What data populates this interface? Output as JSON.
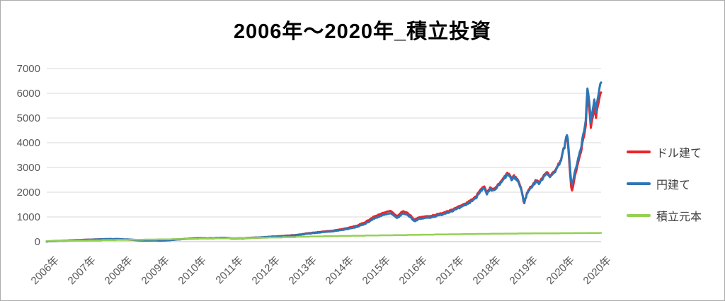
{
  "chart_data": {
    "type": "line",
    "title": "2006年～2020年_積立投資",
    "grid": "horizontal",
    "colors": {
      "usd": "#e8252a",
      "jpy": "#2e75b6",
      "principal": "#95d054",
      "gridline": "#d9d9d9",
      "axis_line": "#bfbfbf",
      "tick_label": "#595959",
      "title_color": "#000000"
    },
    "y_axis": {
      "min": 0,
      "max": 7000,
      "tick_values": [
        0,
        1000,
        2000,
        3000,
        4000,
        5000,
        6000,
        7000
      ],
      "tick_labels": [
        "0",
        "1000",
        "2000",
        "3000",
        "4000",
        "5000",
        "6000",
        "7000"
      ]
    },
    "x_axis": {
      "rotation": -45,
      "tick_labels": [
        "2006年",
        "2007年",
        "2008年",
        "2009年",
        "2010年",
        "2011年",
        "2012年",
        "2013年",
        "2014年",
        "2015年",
        "2016年",
        "2017年",
        "2018年",
        "2019年",
        "2020年",
        "2020年"
      ]
    },
    "legend": {
      "position": "right",
      "items": [
        {
          "id": "usd",
          "label": "ドル建て",
          "color": "#e8252a"
        },
        {
          "id": "jpy",
          "label": "円建て",
          "color": "#2e75b6"
        },
        {
          "id": "principal",
          "label": "積立元本",
          "color": "#95d054"
        }
      ]
    },
    "series": [
      {
        "id": "usd",
        "name": "ドル建て",
        "color": "#e8252a",
        "width": 3,
        "anchors": [
          [
            0.0,
            10
          ],
          [
            0.02,
            25
          ],
          [
            0.04,
            45
          ],
          [
            0.0645,
            72
          ],
          [
            0.09,
            92
          ],
          [
            0.11,
            103
          ],
          [
            0.129,
            102
          ],
          [
            0.15,
            80
          ],
          [
            0.165,
            55
          ],
          [
            0.18,
            42
          ],
          [
            0.1935,
            52
          ],
          [
            0.205,
            38
          ],
          [
            0.22,
            62
          ],
          [
            0.24,
            98
          ],
          [
            0.258,
            118
          ],
          [
            0.275,
            138
          ],
          [
            0.29,
            128
          ],
          [
            0.31,
            148
          ],
          [
            0.3225,
            152
          ],
          [
            0.335,
            128
          ],
          [
            0.35,
            138
          ],
          [
            0.37,
            158
          ],
          [
            0.387,
            172
          ],
          [
            0.405,
            205
          ],
          [
            0.42,
            220
          ],
          [
            0.435,
            245
          ],
          [
            0.4515,
            275
          ],
          [
            0.47,
            335
          ],
          [
            0.49,
            385
          ],
          [
            0.505,
            415
          ],
          [
            0.516,
            445
          ],
          [
            0.53,
            495
          ],
          [
            0.545,
            560
          ],
          [
            0.56,
            650
          ],
          [
            0.572,
            760
          ],
          [
            0.5805,
            870
          ],
          [
            0.59,
            1010
          ],
          [
            0.6,
            1100
          ],
          [
            0.612,
            1190
          ],
          [
            0.62,
            1240
          ],
          [
            0.628,
            1090
          ],
          [
            0.6335,
            1040
          ],
          [
            0.64,
            1200
          ],
          [
            0.645,
            1230
          ],
          [
            0.652,
            1140
          ],
          [
            0.658,
            1020
          ],
          [
            0.663,
            890
          ],
          [
            0.67,
            960
          ],
          [
            0.68,
            1010
          ],
          [
            0.692,
            1040
          ],
          [
            0.7095,
            1130
          ],
          [
            0.722,
            1230
          ],
          [
            0.735,
            1330
          ],
          [
            0.748,
            1450
          ],
          [
            0.76,
            1600
          ],
          [
            0.774,
            1820
          ],
          [
            0.782,
            2120
          ],
          [
            0.789,
            2220
          ],
          [
            0.794,
            1960
          ],
          [
            0.8,
            2160
          ],
          [
            0.806,
            2110
          ],
          [
            0.8125,
            2260
          ],
          [
            0.82,
            2440
          ],
          [
            0.8285,
            2720
          ],
          [
            0.833,
            2790
          ],
          [
            0.8385,
            2540
          ],
          [
            0.8435,
            2660
          ],
          [
            0.85,
            2500
          ],
          [
            0.856,
            2130
          ],
          [
            0.861,
            1520
          ],
          [
            0.8665,
            1980
          ],
          [
            0.872,
            2190
          ],
          [
            0.878,
            2350
          ],
          [
            0.8835,
            2500
          ],
          [
            0.889,
            2370
          ],
          [
            0.894,
            2600
          ],
          [
            0.8985,
            2760
          ],
          [
            0.9035,
            2850
          ],
          [
            0.908,
            2610
          ],
          [
            0.9125,
            2770
          ],
          [
            0.917,
            2910
          ],
          [
            0.9225,
            3090
          ],
          [
            0.928,
            3380
          ],
          [
            0.9335,
            3820
          ],
          [
            0.939,
            4300
          ],
          [
            0.9425,
            3250
          ],
          [
            0.947,
            1960
          ],
          [
            0.9515,
            2500
          ],
          [
            0.956,
            2950
          ],
          [
            0.9605,
            3350
          ],
          [
            0.965,
            3800
          ],
          [
            0.969,
            4250
          ],
          [
            0.9725,
            4700
          ],
          [
            0.9755,
            6000
          ],
          [
            0.978,
            5600
          ],
          [
            0.9815,
            4550
          ],
          [
            0.985,
            5000
          ],
          [
            0.988,
            5500
          ],
          [
            0.9905,
            5000
          ],
          [
            0.9935,
            5450
          ],
          [
            0.9965,
            5800
          ],
          [
            1.0,
            6080
          ]
        ]
      },
      {
        "id": "jpy",
        "name": "円建て",
        "color": "#2e75b6",
        "width": 3,
        "anchors": [
          [
            0.0,
            10
          ],
          [
            0.02,
            25
          ],
          [
            0.04,
            45
          ],
          [
            0.0645,
            70
          ],
          [
            0.09,
            90
          ],
          [
            0.11,
            100
          ],
          [
            0.129,
            105
          ],
          [
            0.15,
            85
          ],
          [
            0.165,
            60
          ],
          [
            0.18,
            45
          ],
          [
            0.1935,
            55
          ],
          [
            0.205,
            40
          ],
          [
            0.22,
            60
          ],
          [
            0.24,
            95
          ],
          [
            0.258,
            120
          ],
          [
            0.275,
            140
          ],
          [
            0.29,
            130
          ],
          [
            0.31,
            150
          ],
          [
            0.3225,
            155
          ],
          [
            0.335,
            130
          ],
          [
            0.35,
            135
          ],
          [
            0.37,
            155
          ],
          [
            0.387,
            175
          ],
          [
            0.405,
            200
          ],
          [
            0.42,
            215
          ],
          [
            0.435,
            235
          ],
          [
            0.4515,
            265
          ],
          [
            0.47,
            320
          ],
          [
            0.49,
            370
          ],
          [
            0.505,
            395
          ],
          [
            0.516,
            420
          ],
          [
            0.53,
            465
          ],
          [
            0.545,
            520
          ],
          [
            0.56,
            600
          ],
          [
            0.572,
            700
          ],
          [
            0.5805,
            800
          ],
          [
            0.59,
            930
          ],
          [
            0.6,
            1020
          ],
          [
            0.612,
            1100
          ],
          [
            0.62,
            1140
          ],
          [
            0.628,
            1010
          ],
          [
            0.6335,
            960
          ],
          [
            0.64,
            1110
          ],
          [
            0.645,
            1140
          ],
          [
            0.652,
            1060
          ],
          [
            0.658,
            950
          ],
          [
            0.663,
            830
          ],
          [
            0.67,
            900
          ],
          [
            0.68,
            950
          ],
          [
            0.692,
            980
          ],
          [
            0.7095,
            1070
          ],
          [
            0.722,
            1170
          ],
          [
            0.735,
            1270
          ],
          [
            0.748,
            1390
          ],
          [
            0.76,
            1540
          ],
          [
            0.774,
            1760
          ],
          [
            0.782,
            2050
          ],
          [
            0.789,
            2150
          ],
          [
            0.794,
            1900
          ],
          [
            0.8,
            2100
          ],
          [
            0.806,
            2050
          ],
          [
            0.8125,
            2200
          ],
          [
            0.82,
            2380
          ],
          [
            0.8285,
            2650
          ],
          [
            0.833,
            2720
          ],
          [
            0.8385,
            2480
          ],
          [
            0.8435,
            2600
          ],
          [
            0.85,
            2450
          ],
          [
            0.856,
            2100
          ],
          [
            0.861,
            1580
          ],
          [
            0.8665,
            1950
          ],
          [
            0.872,
            2150
          ],
          [
            0.878,
            2300
          ],
          [
            0.8835,
            2450
          ],
          [
            0.889,
            2330
          ],
          [
            0.894,
            2550
          ],
          [
            0.8985,
            2700
          ],
          [
            0.9035,
            2790
          ],
          [
            0.908,
            2570
          ],
          [
            0.9125,
            2720
          ],
          [
            0.917,
            2860
          ],
          [
            0.9225,
            3050
          ],
          [
            0.928,
            3350
          ],
          [
            0.9335,
            3800
          ],
          [
            0.939,
            4370
          ],
          [
            0.9425,
            3400
          ],
          [
            0.947,
            2230
          ],
          [
            0.9515,
            2700
          ],
          [
            0.956,
            3100
          ],
          [
            0.9605,
            3500
          ],
          [
            0.965,
            3950
          ],
          [
            0.969,
            4450
          ],
          [
            0.9725,
            4900
          ],
          [
            0.9755,
            6350
          ],
          [
            0.978,
            5900
          ],
          [
            0.9815,
            4750
          ],
          [
            0.985,
            5300
          ],
          [
            0.988,
            5850
          ],
          [
            0.9905,
            5250
          ],
          [
            0.9935,
            5800
          ],
          [
            0.9965,
            6200
          ],
          [
            1.0,
            6500
          ]
        ]
      },
      {
        "id": "principal",
        "name": "積立元本",
        "color": "#95d054",
        "width": 2.5,
        "style": "step",
        "anchors": [
          [
            0.0,
            25
          ],
          [
            0.1,
            62
          ],
          [
            0.2,
            95
          ],
          [
            0.3,
            130
          ],
          [
            0.4,
            168
          ],
          [
            0.45,
            200
          ],
          [
            0.55,
            240
          ],
          [
            0.65,
            275
          ],
          [
            0.75,
            308
          ],
          [
            0.85,
            330
          ],
          [
            0.93,
            343
          ],
          [
            1.0,
            355
          ]
        ]
      }
    ]
  }
}
